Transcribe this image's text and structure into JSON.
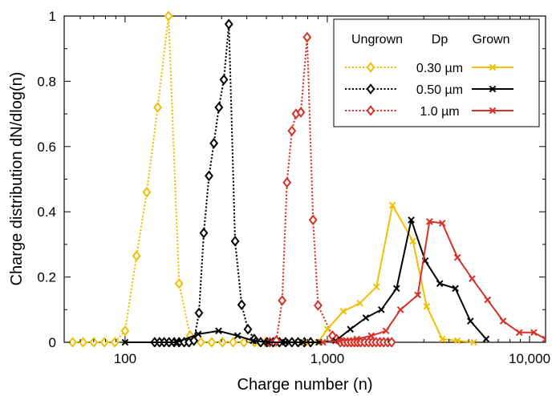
{
  "chart_data": {
    "type": "line",
    "xscale": "log",
    "xlabel": "Charge number (n)",
    "ylabel": "Charge distribution dN/dlog(n)",
    "xlim": [
      50,
      12000
    ],
    "ylim": [
      0,
      1
    ],
    "xticks": [
      {
        "value": 100,
        "label": "100"
      },
      {
        "value": 1000,
        "label": "1,000"
      },
      {
        "value": 10000,
        "label": "10,000"
      }
    ],
    "yticks": [
      {
        "value": 0,
        "label": "0"
      },
      {
        "value": 0.2,
        "label": "0.2"
      },
      {
        "value": 0.4,
        "label": "0.4"
      },
      {
        "value": 0.6,
        "label": "0.6"
      },
      {
        "value": 0.8,
        "label": "0.8"
      },
      {
        "value": 1,
        "label": "1"
      }
    ],
    "grid": false,
    "legend": {
      "placement": "top-right",
      "headers": [
        "Ungrown",
        "Dp",
        "Grown"
      ],
      "rows": [
        "0.30 µm",
        "0.50 µm",
        "1.0 µm"
      ]
    },
    "colors": {
      "size_030": "#f0c000",
      "size_050": "#000000",
      "size_100": "#d73027"
    },
    "series": [
      {
        "group": "Ungrown",
        "size": "0.30 µm",
        "color": "#f0c000",
        "style": "dotted",
        "marker": "diamond",
        "points": [
          [
            55,
            0
          ],
          [
            62,
            0
          ],
          [
            70,
            0
          ],
          [
            79,
            0
          ],
          [
            89,
            0
          ],
          [
            100,
            0.035
          ],
          [
            114,
            0.265
          ],
          [
            128,
            0.46
          ],
          [
            145,
            0.72
          ],
          [
            164,
            1.0
          ],
          [
            185,
            0.18
          ],
          [
            210,
            0.02
          ],
          [
            237,
            0
          ],
          [
            268,
            0
          ],
          [
            303,
            0
          ],
          [
            342,
            0
          ],
          [
            387,
            0
          ],
          [
            437,
            0
          ],
          [
            494,
            0
          ],
          [
            558,
            0
          ]
        ]
      },
      {
        "group": "Ungrown",
        "size": "0.50 µm",
        "color": "#000000",
        "style": "dotted",
        "marker": "diamond",
        "points": [
          [
            140,
            0
          ],
          [
            148,
            0
          ],
          [
            156,
            0
          ],
          [
            165,
            0
          ],
          [
            175,
            0
          ],
          [
            185,
            0
          ],
          [
            196,
            0
          ],
          [
            207,
            0
          ],
          [
            219,
            0.005
          ],
          [
            232,
            0.09
          ],
          [
            245,
            0.335
          ],
          [
            260,
            0.51
          ],
          [
            275,
            0.61
          ],
          [
            291,
            0.72
          ],
          [
            308,
            0.805
          ],
          [
            326,
            0.975
          ],
          [
            350,
            0.31
          ],
          [
            377,
            0.115
          ],
          [
            405,
            0.04
          ],
          [
            435,
            0.01
          ],
          [
            468,
            0
          ],
          [
            503,
            0
          ],
          [
            540,
            0
          ],
          [
            580,
            0
          ],
          [
            622,
            0
          ],
          [
            668,
            0
          ],
          [
            717,
            0
          ],
          [
            770,
            0
          ],
          [
            827,
            0
          ]
        ]
      },
      {
        "group": "Ungrown",
        "size": "1.0 µm",
        "color": "#d73027",
        "style": "dotted",
        "marker": "diamond",
        "points": [
          [
            520,
            0
          ],
          [
            560,
            0.005
          ],
          [
            598,
            0.128
          ],
          [
            632,
            0.49
          ],
          [
            668,
            0.648
          ],
          [
            700,
            0.7
          ],
          [
            740,
            0.705
          ],
          [
            795,
            0.935
          ],
          [
            850,
            0.375
          ],
          [
            900,
            0.113
          ],
          [
            1060,
            0.02
          ],
          [
            1110,
            0.01
          ],
          [
            1160,
            0
          ],
          [
            1210,
            0
          ],
          [
            1260,
            0
          ],
          [
            1310,
            0
          ],
          [
            1360,
            0
          ],
          [
            1410,
            0
          ],
          [
            1460,
            0
          ],
          [
            1530,
            0
          ],
          [
            1600,
            0
          ],
          [
            1670,
            0
          ],
          [
            1740,
            0
          ],
          [
            1820,
            0
          ],
          [
            1900,
            0
          ],
          [
            1990,
            0
          ],
          [
            2080,
            0
          ]
        ]
      },
      {
        "group": "Grown",
        "size": "0.30 µm",
        "color": "#f0c000",
        "style": "solid",
        "marker": "x",
        "points": [
          [
            780,
            0
          ],
          [
            900,
            0
          ],
          [
            1000,
            0.04
          ],
          [
            1200,
            0.095
          ],
          [
            1450,
            0.12
          ],
          [
            1750,
            0.17
          ],
          [
            2100,
            0.42
          ],
          [
            2650,
            0.31
          ],
          [
            3100,
            0.11
          ],
          [
            3700,
            0.01
          ],
          [
            4400,
            0.005
          ],
          [
            5300,
            0
          ]
        ]
      },
      {
        "group": "Grown",
        "size": "0.50 µm",
        "color": "#000000",
        "style": "solid",
        "marker": "x",
        "points": [
          [
            100,
            0
          ],
          [
            180,
            0
          ],
          [
            230,
            0.025
          ],
          [
            290,
            0.035
          ],
          [
            360,
            0.02
          ],
          [
            430,
            0.005
          ],
          [
            510,
            0
          ],
          [
            620,
            0
          ],
          [
            760,
            0
          ],
          [
            910,
            0
          ],
          [
            1100,
            0.005
          ],
          [
            1300,
            0.04
          ],
          [
            1550,
            0.075
          ],
          [
            1850,
            0.1
          ],
          [
            2200,
            0.165
          ],
          [
            2600,
            0.375
          ],
          [
            3050,
            0.25
          ],
          [
            3600,
            0.18
          ],
          [
            4300,
            0.165
          ],
          [
            5100,
            0.065
          ],
          [
            6100,
            0.01
          ]
        ]
      },
      {
        "group": "Grown",
        "size": "1.0 µm",
        "color": "#d73027",
        "style": "solid",
        "marker": "x",
        "points": [
          [
            950,
            0
          ],
          [
            1150,
            0.005
          ],
          [
            1400,
            0.01
          ],
          [
            1650,
            0.02
          ],
          [
            1950,
            0.035
          ],
          [
            2300,
            0.1
          ],
          [
            2800,
            0.145
          ],
          [
            3200,
            0.37
          ],
          [
            3700,
            0.365
          ],
          [
            4400,
            0.26
          ],
          [
            5200,
            0.195
          ],
          [
            6200,
            0.13
          ],
          [
            7400,
            0.065
          ],
          [
            8900,
            0.03
          ],
          [
            10500,
            0.03
          ],
          [
            12000,
            0.01
          ]
        ]
      }
    ]
  }
}
